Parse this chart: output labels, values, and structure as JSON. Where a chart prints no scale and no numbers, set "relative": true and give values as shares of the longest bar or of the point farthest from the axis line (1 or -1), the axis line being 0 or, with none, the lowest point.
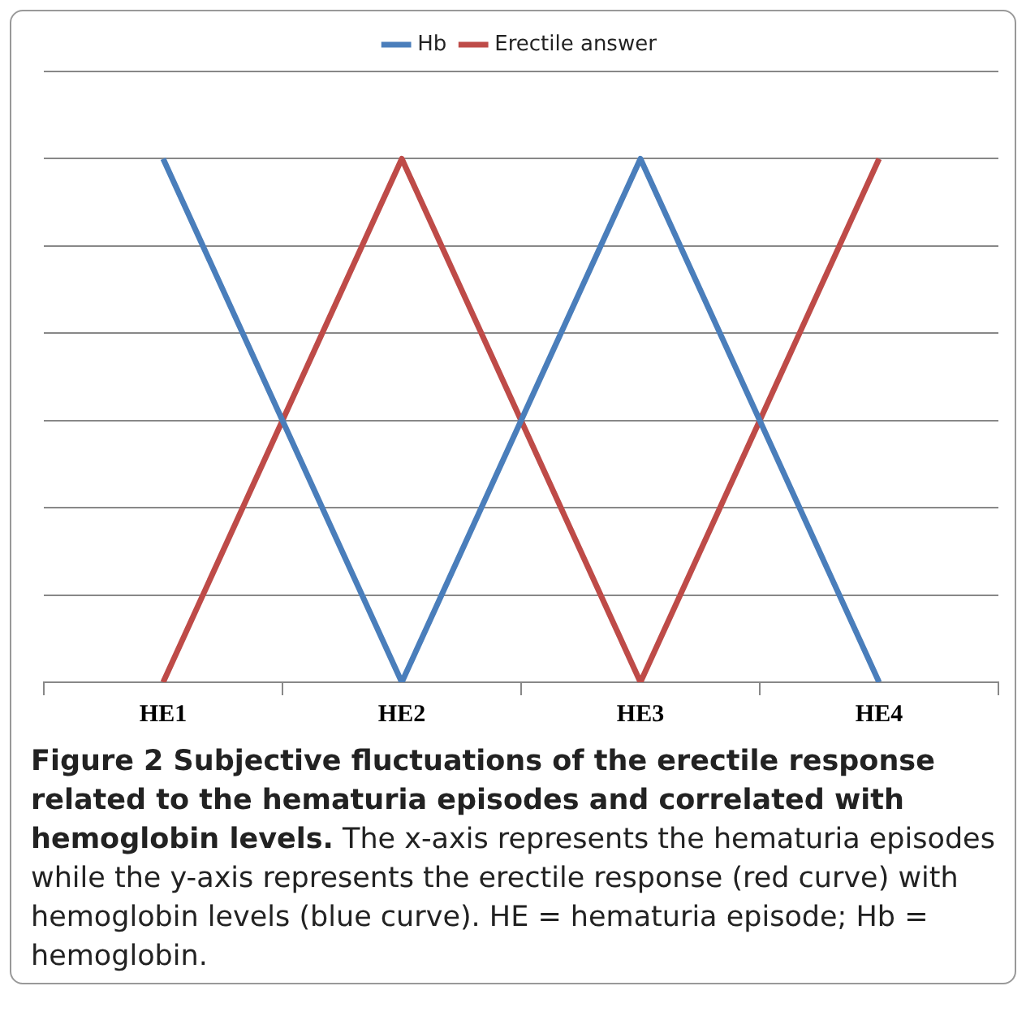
{
  "chart_data": {
    "type": "line",
    "relative": true,
    "categories": [
      "HE1",
      "HE2",
      "HE3",
      "HE4"
    ],
    "series": [
      {
        "name": "Hb",
        "color": "#4a7ebb",
        "values": [
          1,
          0,
          1,
          0
        ]
      },
      {
        "name": "Erectile answer",
        "color": "#be4b48",
        "values": [
          0,
          1,
          0,
          1
        ]
      }
    ],
    "legend": "top",
    "grid": "y",
    "marker": "none",
    "line_style": "solid",
    "title": "Figure 2 Subjective fluctuations of the erectile response related to the hematuria episodes and correlated with hemoglobin levels.",
    "annotations": [
      "The x-axis represents the hematuria episodes while the y-axis represents the erectile response (red curve) with hemoglobin levels (blue curve). HE = hematuria episode; Hb = hemoglobin."
    ]
  }
}
